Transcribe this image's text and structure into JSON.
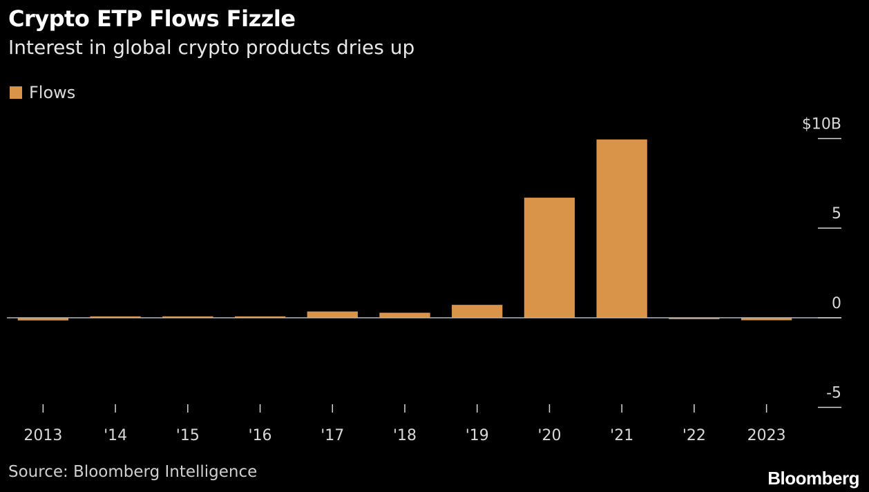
{
  "header": {
    "title": "Crypto ETP Flows Fizzle",
    "subtitle": "Interest in global crypto products dries up"
  },
  "legend": {
    "label": "Flows",
    "color": "#d9944a"
  },
  "footer": {
    "source": "Source: Bloomberg Intelligence",
    "brand": "Bloomberg"
  },
  "chart_data": {
    "type": "bar",
    "categories": [
      "2013",
      "'14",
      "'15",
      "'16",
      "'17",
      "'18",
      "'19",
      "'20",
      "'21",
      "'22",
      "2023"
    ],
    "series": [
      {
        "name": "Flows",
        "color": "#d9944a",
        "values": [
          -0.15,
          0.05,
          0.03,
          0.05,
          0.35,
          0.28,
          0.72,
          6.7,
          9.95,
          -0.04,
          -0.14
        ]
      }
    ],
    "ylim": [
      -5,
      10
    ],
    "yticks": [
      {
        "value": 10,
        "label": "$10B"
      },
      {
        "value": 5,
        "label": "5"
      },
      {
        "value": 0,
        "label": "0"
      },
      {
        "value": -5,
        "label": "-5"
      }
    ],
    "title": "Crypto ETP Flows Fizzle",
    "subtitle": "Interest in global crypto products dries up",
    "xlabel": "",
    "ylabel": "",
    "grid": false,
    "legend_position": "top-left"
  }
}
